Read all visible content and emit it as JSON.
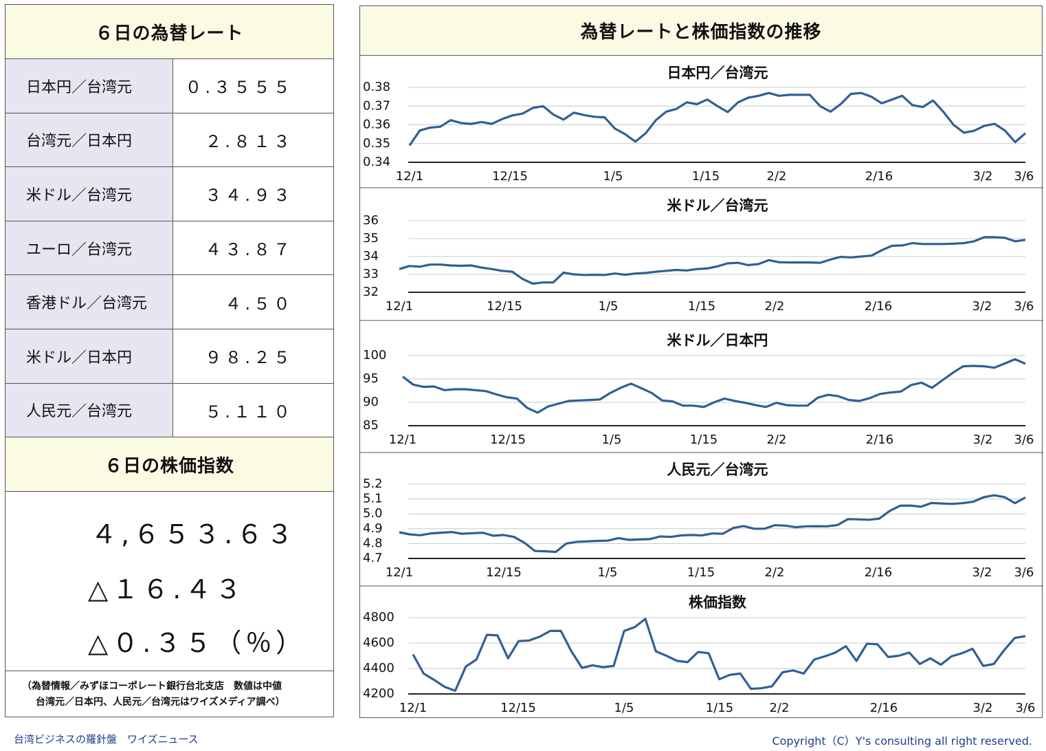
{
  "rate_table": {
    "title": "６日の為替レート",
    "rows": [
      {
        "name": "日本円／台湾元",
        "value": "０.３５５５"
      },
      {
        "name": "台湾元／日本円",
        "value": "２.８１３"
      },
      {
        "name": "米ドル／台湾元",
        "value": "３４.９３"
      },
      {
        "name": "ユーロ／台湾元",
        "value": "４３.８７"
      },
      {
        "name": "香港ドル／台湾元",
        "value": "４.５０"
      },
      {
        "name": "米ドル／日本円",
        "value": "９８.２５"
      },
      {
        "name": "人民元／台湾元",
        "value": "５.１１０"
      }
    ]
  },
  "stock": {
    "title": "６日の株価指数",
    "index": "４,６５３.６３",
    "change": "△１６.４３",
    "change_pct": "△０.３５（％）"
  },
  "source_note": {
    "line1": "（為替情報／みずほコーポレート銀行台北支店　数値は中値",
    "line2": "台湾元／日本円、人民元／台湾元はワイズメディア調べ）"
  },
  "charts_title": "為替レートと株価指数の推移",
  "colors": {
    "line": "#2f5f94",
    "header_bg": "#fbfbe4",
    "label_bg": "#e6e6f2",
    "footer_text": "#1e3e8c"
  },
  "chart_data": [
    {
      "type": "line",
      "title": "日本円／台湾元",
      "tick_labels": [
        "12/1",
        "12/15",
        "1/5",
        "1/15",
        "2/2",
        "2/16",
        "3/2",
        "3/6"
      ],
      "ylim": [
        0.34,
        0.38
      ],
      "yticks": [
        "0.38",
        "0.37",
        "0.36",
        "0.35",
        "0.34"
      ],
      "values": [
        0.349,
        0.357,
        0.3585,
        0.359,
        0.3625,
        0.361,
        0.3605,
        0.3615,
        0.3605,
        0.363,
        0.365,
        0.366,
        0.369,
        0.37,
        0.3655,
        0.3628,
        0.3665,
        0.3652,
        0.3643,
        0.364,
        0.358,
        0.355,
        0.351,
        0.3555,
        0.3625,
        0.367,
        0.3685,
        0.372,
        0.371,
        0.3735,
        0.37,
        0.3668,
        0.372,
        0.3745,
        0.3755,
        0.377,
        0.3755,
        0.376,
        0.376,
        0.376,
        0.37,
        0.367,
        0.371,
        0.3765,
        0.377,
        0.375,
        0.3715,
        0.3735,
        0.3755,
        0.3705,
        0.3695,
        0.373,
        0.367,
        0.36,
        0.3558,
        0.3568,
        0.3595,
        0.3605,
        0.357,
        0.3508,
        0.3555
      ]
    },
    {
      "type": "line",
      "title": "米ドル／台湾元",
      "tick_labels": [
        "12/1",
        "12/15",
        "1/5",
        "1/15",
        "2/2",
        "2/16",
        "3/2",
        "3/6"
      ],
      "ylim": [
        32,
        36
      ],
      "yticks": [
        "36",
        "35",
        "34",
        "33",
        "32"
      ],
      "values": [
        33.3,
        33.47,
        33.43,
        33.55,
        33.55,
        33.5,
        33.48,
        33.5,
        33.38,
        33.3,
        33.2,
        33.15,
        32.75,
        32.48,
        32.55,
        32.55,
        33.1,
        33.0,
        32.97,
        32.98,
        32.97,
        33.05,
        32.98,
        33.05,
        33.08,
        33.15,
        33.2,
        33.25,
        33.22,
        33.3,
        33.33,
        33.45,
        33.62,
        33.65,
        33.52,
        33.58,
        33.8,
        33.68,
        33.67,
        33.67,
        33.67,
        33.65,
        33.83,
        33.98,
        33.95,
        34.0,
        34.05,
        34.35,
        34.6,
        34.62,
        34.75,
        34.7,
        34.7,
        34.7,
        34.72,
        34.75,
        34.85,
        35.08,
        35.08,
        35.05,
        34.85,
        34.93
      ]
    },
    {
      "type": "line",
      "title": "米ドル／日本円",
      "tick_labels": [
        "12/1",
        "12/15",
        "1/5",
        "1/15",
        "2/2",
        "2/16",
        "3/2",
        "3/6"
      ],
      "ylim": [
        85,
        100
      ],
      "yticks": [
        "100",
        "95",
        "90",
        "85"
      ],
      "values": [
        95.5,
        93.8,
        93.3,
        93.4,
        92.6,
        92.8,
        92.8,
        92.6,
        92.4,
        91.7,
        91.1,
        90.8,
        88.8,
        87.8,
        89.1,
        89.7,
        90.3,
        90.4,
        90.5,
        90.6,
        92.0,
        93.1,
        94.0,
        93.0,
        92.0,
        90.4,
        90.2,
        89.3,
        89.3,
        89.0,
        90.0,
        90.8,
        90.3,
        89.9,
        89.4,
        89.0,
        89.9,
        89.4,
        89.3,
        89.3,
        91.0,
        91.6,
        91.3,
        90.5,
        90.3,
        90.9,
        91.8,
        92.1,
        92.3,
        93.7,
        94.2,
        93.1,
        94.7,
        96.3,
        97.7,
        97.8,
        97.7,
        97.4,
        98.3,
        99.2,
        98.25
      ]
    },
    {
      "type": "line",
      "title": "人民元／台湾元",
      "tick_labels": [
        "12/1",
        "12/15",
        "1/5",
        "1/15",
        "2/2",
        "2/16",
        "3/2",
        "3/6"
      ],
      "ylim": [
        4.7,
        5.2
      ],
      "yticks": [
        "5.2",
        "5.1",
        "5.0",
        "4.9",
        "4.8",
        "4.7"
      ],
      "values": [
        4.876,
        4.862,
        4.856,
        4.868,
        4.873,
        4.878,
        4.866,
        4.87,
        4.873,
        4.853,
        4.858,
        4.845,
        4.805,
        4.75,
        4.748,
        4.744,
        4.8,
        4.812,
        4.815,
        4.818,
        4.82,
        4.837,
        4.825,
        4.828,
        4.83,
        4.848,
        4.845,
        4.855,
        4.858,
        4.855,
        4.868,
        4.866,
        4.905,
        4.918,
        4.9,
        4.9,
        4.924,
        4.921,
        4.91,
        4.916,
        4.917,
        4.916,
        4.925,
        4.965,
        4.963,
        4.96,
        4.968,
        5.02,
        5.055,
        5.056,
        5.048,
        5.073,
        5.07,
        5.067,
        5.072,
        5.082,
        5.112,
        5.125,
        5.113,
        5.072,
        5.11
      ]
    },
    {
      "type": "line",
      "title": "株価指数",
      "tick_labels": [
        "12/1",
        "12/15",
        "1/5",
        "1/15",
        "2/2",
        "2/16",
        "3/2",
        "3/6"
      ],
      "ylim": [
        4200,
        4800
      ],
      "yticks": [
        "4800",
        "4600",
        "4400",
        "4200"
      ],
      "values": [
        4510,
        4360,
        4310,
        4255,
        4225,
        4415,
        4470,
        4665,
        4660,
        4480,
        4615,
        4620,
        4650,
        4695,
        4695,
        4535,
        4405,
        4425,
        4410,
        4420,
        4695,
        4725,
        4790,
        4535,
        4500,
        4460,
        4450,
        4530,
        4520,
        4315,
        4350,
        4360,
        4240,
        4245,
        4260,
        4370,
        4385,
        4360,
        4470,
        4495,
        4525,
        4575,
        4460,
        4595,
        4590,
        4490,
        4500,
        4525,
        4435,
        4480,
        4430,
        4495,
        4520,
        4555,
        4420,
        4435,
        4545,
        4640,
        4654
      ]
    }
  ],
  "footer": {
    "left": "台湾ビジネスの羅針盤　ワイズニュース",
    "right": "Copyright（C）Y's consulting all right reserved."
  }
}
